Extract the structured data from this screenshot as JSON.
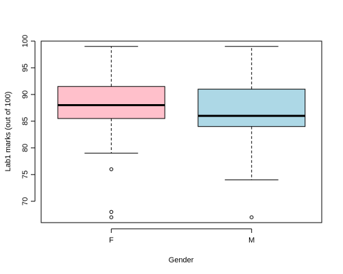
{
  "chart_data": {
    "type": "boxplot",
    "xlabel": "Gender",
    "ylabel": "Lab1 marks (out of 100)",
    "ylim": [
      66,
      100
    ],
    "yticks": [
      70,
      75,
      80,
      85,
      90,
      95,
      100
    ],
    "grid": false,
    "categories": [
      "F",
      "M"
    ],
    "boxes": [
      {
        "category": "F",
        "color": "#ffc0cb",
        "whisker_low": 79,
        "q1": 85.5,
        "median": 88,
        "q3": 91.5,
        "whisker_high": 99,
        "outliers": [
          76,
          68,
          67
        ]
      },
      {
        "category": "M",
        "color": "#add8e6",
        "whisker_low": 74,
        "q1": 84,
        "median": 86,
        "q3": 91,
        "whisker_high": 99,
        "outliers": [
          67
        ]
      }
    ]
  }
}
